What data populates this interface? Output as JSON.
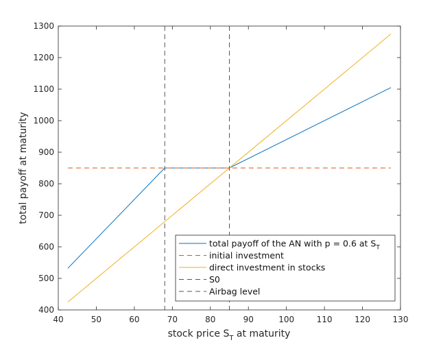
{
  "chart_data": {
    "type": "line",
    "xlabel": "stock price S",
    "xlabel_sub": "T",
    "xlabel_tail": " at maturity",
    "ylabel": "total payoff at maturity",
    "xlim": [
      40,
      130
    ],
    "ylim": [
      400,
      1300
    ],
    "xticks": [
      40,
      50,
      60,
      70,
      80,
      90,
      100,
      110,
      120,
      130
    ],
    "yticks": [
      400,
      500,
      600,
      700,
      800,
      900,
      1000,
      1100,
      1200,
      1300
    ],
    "grid": false,
    "legend_position": "bottom-right",
    "series": [
      {
        "name": "total payoff of the AN with p = 0.6 at S",
        "name_sub": "T",
        "color": "#0072BD",
        "dash": "solid",
        "x": [
          42.5,
          68,
          85,
          127.5
        ],
        "y": [
          532,
          850,
          850,
          1105
        ]
      },
      {
        "name": "initial investment",
        "color": "#D95319",
        "dash": "dashed",
        "x": [
          42.5,
          127.5
        ],
        "y": [
          850,
          850
        ]
      },
      {
        "name": "direct investment in stocks",
        "color": "#EDB120",
        "dash": "solid",
        "x": [
          42.5,
          127.5
        ],
        "y": [
          425,
          1275
        ]
      },
      {
        "name": "S0",
        "color": "#555555",
        "dash": "dashed",
        "vertical_x": 85
      },
      {
        "name": "Airbag level",
        "color": "#555555",
        "dash": "dashed",
        "vertical_x": 68
      }
    ]
  }
}
